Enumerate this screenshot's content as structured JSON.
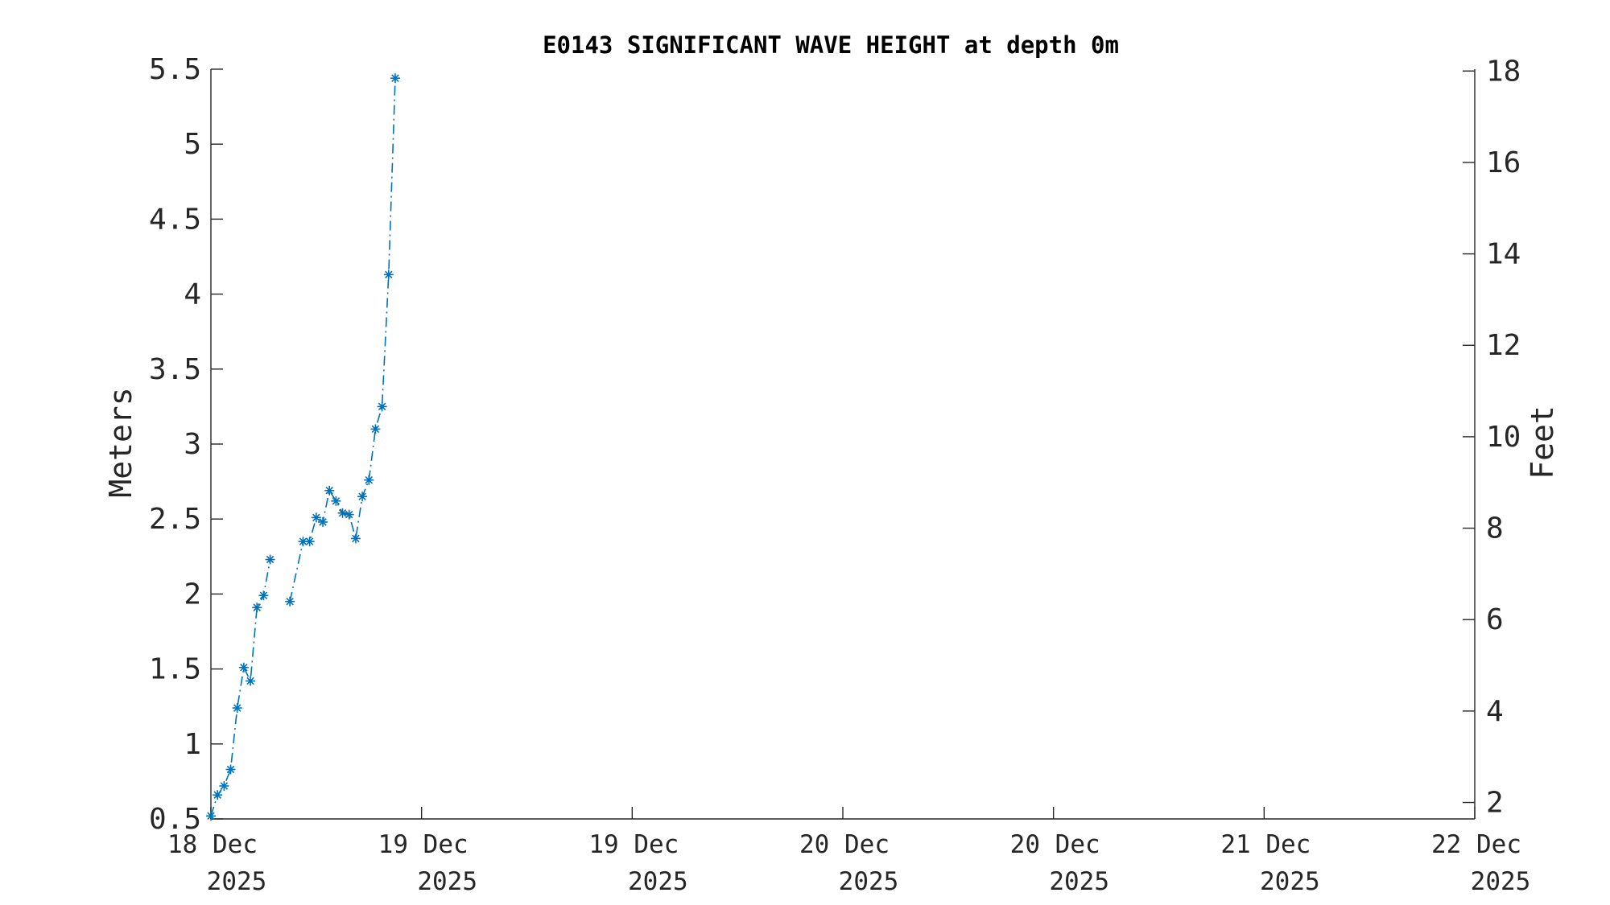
{
  "chart_data": {
    "type": "line",
    "title": "E0143 SIGNIFICANT WAVE HEIGHT at depth 0m",
    "ylabel": "Meters",
    "ylabel_right": "Feet",
    "xlabel": "",
    "ylim": [
      0.5,
      5.5
    ],
    "ylim_right": [
      1.64,
      18.04
    ],
    "yticks": [
      0.5,
      1,
      1.5,
      2,
      2.5,
      3,
      3.5,
      4,
      4.5,
      5,
      5.5
    ],
    "yticklabels": [
      "0.5",
      "1",
      "1.5",
      "2",
      "2.5",
      "3",
      "3.5",
      "4",
      "4.5",
      "5",
      "5.5"
    ],
    "yticks_right": [
      2,
      4,
      6,
      8,
      10,
      12,
      14,
      16,
      18
    ],
    "yticklabels_right": [
      "2",
      "4",
      "6",
      "8",
      "10",
      "12",
      "14",
      "16",
      "18"
    ],
    "xlim": [
      "2025-12-18 00:00",
      "2025-12-22 00:00"
    ],
    "xticks": [
      "2025-12-18 00:00",
      "2025-12-18 16:00",
      "2025-12-19 08:00",
      "2025-12-20 00:00",
      "2025-12-20 16:00",
      "2025-12-21 08:00",
      "2025-12-22 00:00"
    ],
    "xticklabels": [
      [
        "18 Dec",
        "2025"
      ],
      [
        "19 Dec",
        "2025"
      ],
      [
        "19 Dec",
        "2025"
      ],
      [
        "20 Dec",
        "2025"
      ],
      [
        "20 Dec",
        "2025"
      ],
      [
        "21 Dec",
        "2025"
      ],
      [
        "22 Dec",
        "2025"
      ]
    ],
    "grid": false,
    "series": [
      {
        "color": "#0072bd",
        "line_style": "dash-dot",
        "marker": "asterisk",
        "points": [
          [
            "2025-12-18 00:00",
            0.52
          ],
          [
            "2025-12-18 00:30",
            0.66
          ],
          [
            "2025-12-18 01:00",
            0.72
          ],
          [
            "2025-12-18 01:30",
            0.83
          ],
          [
            "2025-12-18 02:00",
            1.24
          ],
          [
            "2025-12-18 02:30",
            1.51
          ],
          [
            "2025-12-18 03:00",
            1.42
          ],
          [
            "2025-12-18 03:30",
            1.91
          ],
          [
            "2025-12-18 04:00",
            1.99
          ],
          [
            "2025-12-18 04:30",
            2.23
          ],
          null,
          [
            "2025-12-18 06:00",
            1.95
          ],
          [
            "2025-12-18 07:00",
            2.35
          ],
          [
            "2025-12-18 07:30",
            2.35
          ],
          [
            "2025-12-18 08:00",
            2.51
          ],
          [
            "2025-12-18 08:30",
            2.48
          ],
          [
            "2025-12-18 09:00",
            2.69
          ],
          [
            "2025-12-18 09:30",
            2.62
          ],
          [
            "2025-12-18 10:00",
            2.54
          ],
          [
            "2025-12-18 10:30",
            2.53
          ],
          [
            "2025-12-18 11:00",
            2.37
          ],
          [
            "2025-12-18 11:30",
            2.65
          ],
          [
            "2025-12-18 12:00",
            2.76
          ],
          [
            "2025-12-18 12:30",
            3.1
          ],
          [
            "2025-12-18 13:00",
            3.25
          ],
          [
            "2025-12-18 13:30",
            4.13
          ],
          [
            "2025-12-18 14:00",
            5.44
          ]
        ]
      }
    ]
  }
}
